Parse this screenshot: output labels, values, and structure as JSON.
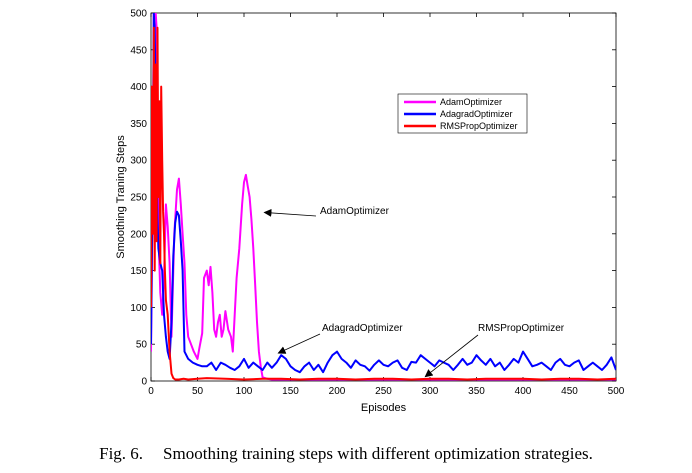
{
  "chart_data": {
    "type": "line",
    "title": "",
    "xlabel": "Episodes",
    "ylabel": "Smoothing Traning Steps",
    "xlim": [
      0,
      500
    ],
    "ylim": [
      0,
      500
    ],
    "xticks": [
      "0",
      "50",
      "100",
      "150",
      "200",
      "250",
      "300",
      "350",
      "400",
      "450",
      "500"
    ],
    "yticks": [
      "0",
      "50",
      "100",
      "150",
      "200",
      "250",
      "300",
      "350",
      "400",
      "450",
      "500"
    ],
    "grid": false,
    "legend_position": "top-right",
    "series": [
      {
        "name": "AdamOptimizer",
        "color": "#ff00ff",
        "x": [
          0,
          2,
          3,
          4,
          5,
          6,
          7,
          8,
          10,
          12,
          14,
          16,
          18,
          20,
          22,
          25,
          28,
          30,
          32,
          34,
          36,
          38,
          40,
          43,
          46,
          48,
          50,
          52,
          55,
          57,
          60,
          62,
          64,
          66,
          68,
          70,
          72,
          74,
          76,
          78,
          80,
          83,
          86,
          88,
          90,
          92,
          95,
          98,
          100,
          102,
          104,
          106,
          108,
          110,
          112,
          114,
          116,
          118,
          120,
          125,
          130,
          140,
          160,
          180,
          200,
          220,
          250,
          280,
          300,
          320,
          350,
          380,
          400,
          420,
          450,
          480,
          500
        ],
        "y": [
          40,
          300,
          500,
          520,
          500,
          480,
          350,
          200,
          120,
          90,
          140,
          240,
          210,
          160,
          60,
          200,
          260,
          275,
          240,
          200,
          160,
          90,
          60,
          50,
          40,
          35,
          30,
          45,
          65,
          140,
          150,
          130,
          155,
          120,
          70,
          60,
          80,
          90,
          60,
          70,
          95,
          70,
          60,
          40,
          90,
          140,
          180,
          240,
          270,
          280,
          265,
          250,
          220,
          180,
          130,
          80,
          40,
          20,
          5,
          3,
          2,
          2,
          2,
          2,
          2,
          2,
          2,
          2,
          2,
          2,
          2,
          2,
          2,
          2,
          2,
          2,
          2
        ]
      },
      {
        "name": "AdagradOptimizer",
        "color": "#0000ff",
        "x": [
          0,
          2,
          3,
          4,
          5,
          7,
          8,
          10,
          12,
          14,
          16,
          18,
          20,
          22,
          24,
          26,
          28,
          30,
          32,
          34,
          36,
          40,
          45,
          50,
          55,
          60,
          65,
          70,
          75,
          80,
          85,
          90,
          95,
          100,
          105,
          110,
          115,
          120,
          125,
          130,
          135,
          140,
          145,
          150,
          155,
          160,
          165,
          170,
          175,
          180,
          185,
          190,
          195,
          200,
          205,
          210,
          215,
          220,
          225,
          230,
          235,
          240,
          245,
          250,
          255,
          260,
          265,
          270,
          275,
          280,
          285,
          290,
          295,
          300,
          305,
          310,
          315,
          320,
          325,
          330,
          335,
          340,
          345,
          350,
          355,
          360,
          365,
          370,
          375,
          380,
          385,
          390,
          395,
          400,
          405,
          410,
          415,
          420,
          425,
          430,
          435,
          440,
          445,
          450,
          455,
          460,
          465,
          470,
          475,
          480,
          485,
          490,
          495,
          500
        ],
        "y": [
          50,
          300,
          500,
          480,
          380,
          220,
          180,
          160,
          150,
          90,
          60,
          40,
          30,
          80,
          170,
          215,
          230,
          225,
          190,
          150,
          40,
          30,
          25,
          22,
          20,
          20,
          25,
          15,
          25,
          22,
          18,
          15,
          20,
          30,
          18,
          25,
          20,
          15,
          25,
          18,
          25,
          35,
          30,
          20,
          15,
          12,
          20,
          25,
          15,
          22,
          12,
          25,
          35,
          40,
          30,
          25,
          18,
          28,
          22,
          20,
          14,
          22,
          28,
          22,
          20,
          25,
          28,
          18,
          15,
          26,
          25,
          35,
          30,
          25,
          20,
          28,
          25,
          22,
          15,
          22,
          30,
          22,
          25,
          35,
          28,
          22,
          30,
          20,
          25,
          15,
          22,
          30,
          25,
          40,
          30,
          20,
          22,
          25,
          20,
          15,
          25,
          30,
          22,
          20,
          25,
          28,
          15,
          20,
          25,
          20,
          15,
          22,
          32,
          15
        ]
      },
      {
        "name": "RMSPropOptimizer",
        "color": "#ff0000",
        "x": [
          0,
          1,
          2,
          3,
          4,
          5,
          6,
          7,
          8,
          9,
          10,
          11,
          12,
          13,
          14,
          15,
          16,
          18,
          20,
          22,
          24,
          26,
          28,
          30,
          35,
          40,
          50,
          60,
          80,
          100,
          120,
          140,
          160,
          180,
          200,
          220,
          240,
          260,
          280,
          300,
          320,
          340,
          360,
          380,
          400,
          420,
          440,
          460,
          480,
          500
        ],
        "y": [
          100,
          400,
          200,
          480,
          150,
          430,
          190,
          480,
          250,
          380,
          160,
          400,
          300,
          230,
          200,
          150,
          110,
          90,
          40,
          10,
          4,
          2,
          2,
          2,
          3,
          2,
          3,
          4,
          3,
          2,
          3,
          3,
          2,
          3,
          3,
          2,
          3,
          3,
          2,
          3,
          3,
          2,
          3,
          3,
          3,
          2,
          3,
          3,
          2,
          3
        ]
      }
    ],
    "annotations": [
      {
        "text": "AdamOptimizer",
        "x": 122,
        "y": 229
      },
      {
        "text": "AdagradOptimizer",
        "x": 137,
        "y": 38
      },
      {
        "text": "RMSPropOptimizer",
        "x": 295,
        "y": 6
      }
    ]
  },
  "caption": {
    "number": "Fig. 6.",
    "text": "Smoothing training steps with different optimization strategies."
  }
}
